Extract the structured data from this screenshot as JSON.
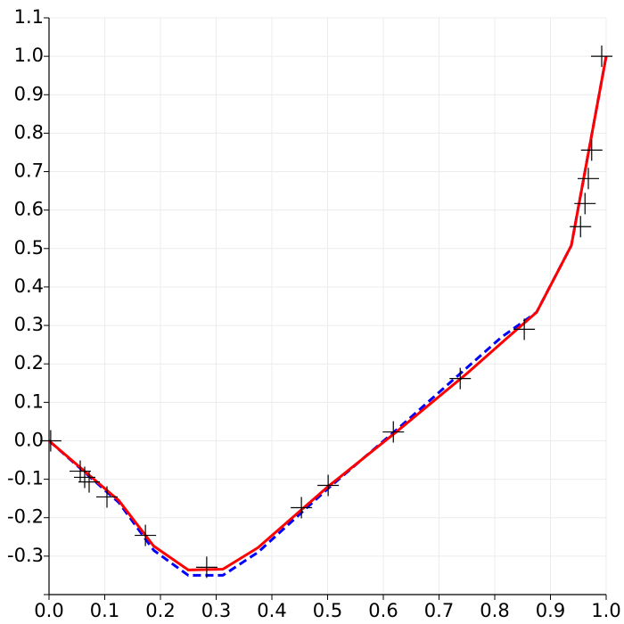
{
  "chart_data": {
    "type": "line",
    "xlim": [
      0,
      1.0
    ],
    "ylim": [
      -0.4,
      1.1
    ],
    "xticks": [
      {
        "value": 0,
        "label": "0.0"
      },
      0.1,
      0.2,
      0.3,
      0.4,
      0.5,
      0.6,
      0.7,
      0.8,
      0.9,
      {
        "value": 1,
        "label": "1.0"
      }
    ],
    "yticks": [
      -0.3,
      -0.2,
      -0.1,
      {
        "value": 0,
        "label": "0.0"
      },
      0.1,
      0.2,
      0.3,
      0.4,
      0.5,
      0.6,
      0.7,
      0.8,
      0.9,
      {
        "value": 1,
        "label": "1.0"
      },
      1.1
    ],
    "grid": true,
    "series": [
      {
        "type": "line",
        "color": "#0000ff",
        "dash": true,
        "x": [
          0,
          0.125,
          0.188,
          0.25,
          0.312,
          0.375,
          0.5,
          0.625,
          0.75,
          0.8125,
          0.875,
          0.9375,
          1.0
        ],
        "values": [
          0,
          -0.16,
          -0.285,
          -0.35,
          -0.35,
          -0.29,
          -0.125,
          0.03,
          0.19,
          0.27,
          0.334,
          0.508,
          1.0
        ]
      },
      {
        "type": "line",
        "color": "#ff0000",
        "dash": false,
        "x": [
          0,
          0.125,
          0.188,
          0.25,
          0.312,
          0.375,
          0.5,
          0.625,
          0.75,
          0.8125,
          0.875,
          0.9375,
          1.0
        ],
        "values": [
          0,
          -0.155,
          -0.274,
          -0.336,
          -0.334,
          -0.278,
          -0.12,
          0.025,
          0.175,
          0.255,
          0.334,
          0.508,
          1.0
        ]
      },
      {
        "type": "scatter",
        "color": "#000000",
        "x": [
          0.003,
          0.056,
          0.064,
          0.072,
          0.104,
          0.173,
          0.283,
          0.453,
          0.501,
          0.618,
          0.738,
          0.853,
          0.954,
          0.962,
          0.968,
          0.974,
          0.992
        ],
        "values": [
          0,
          -0.079,
          -0.095,
          -0.107,
          -0.146,
          -0.246,
          -0.329,
          -0.174,
          -0.116,
          0.023,
          0.162,
          0.29,
          0.557,
          0.617,
          0.682,
          0.756,
          1.0
        ]
      }
    ]
  }
}
